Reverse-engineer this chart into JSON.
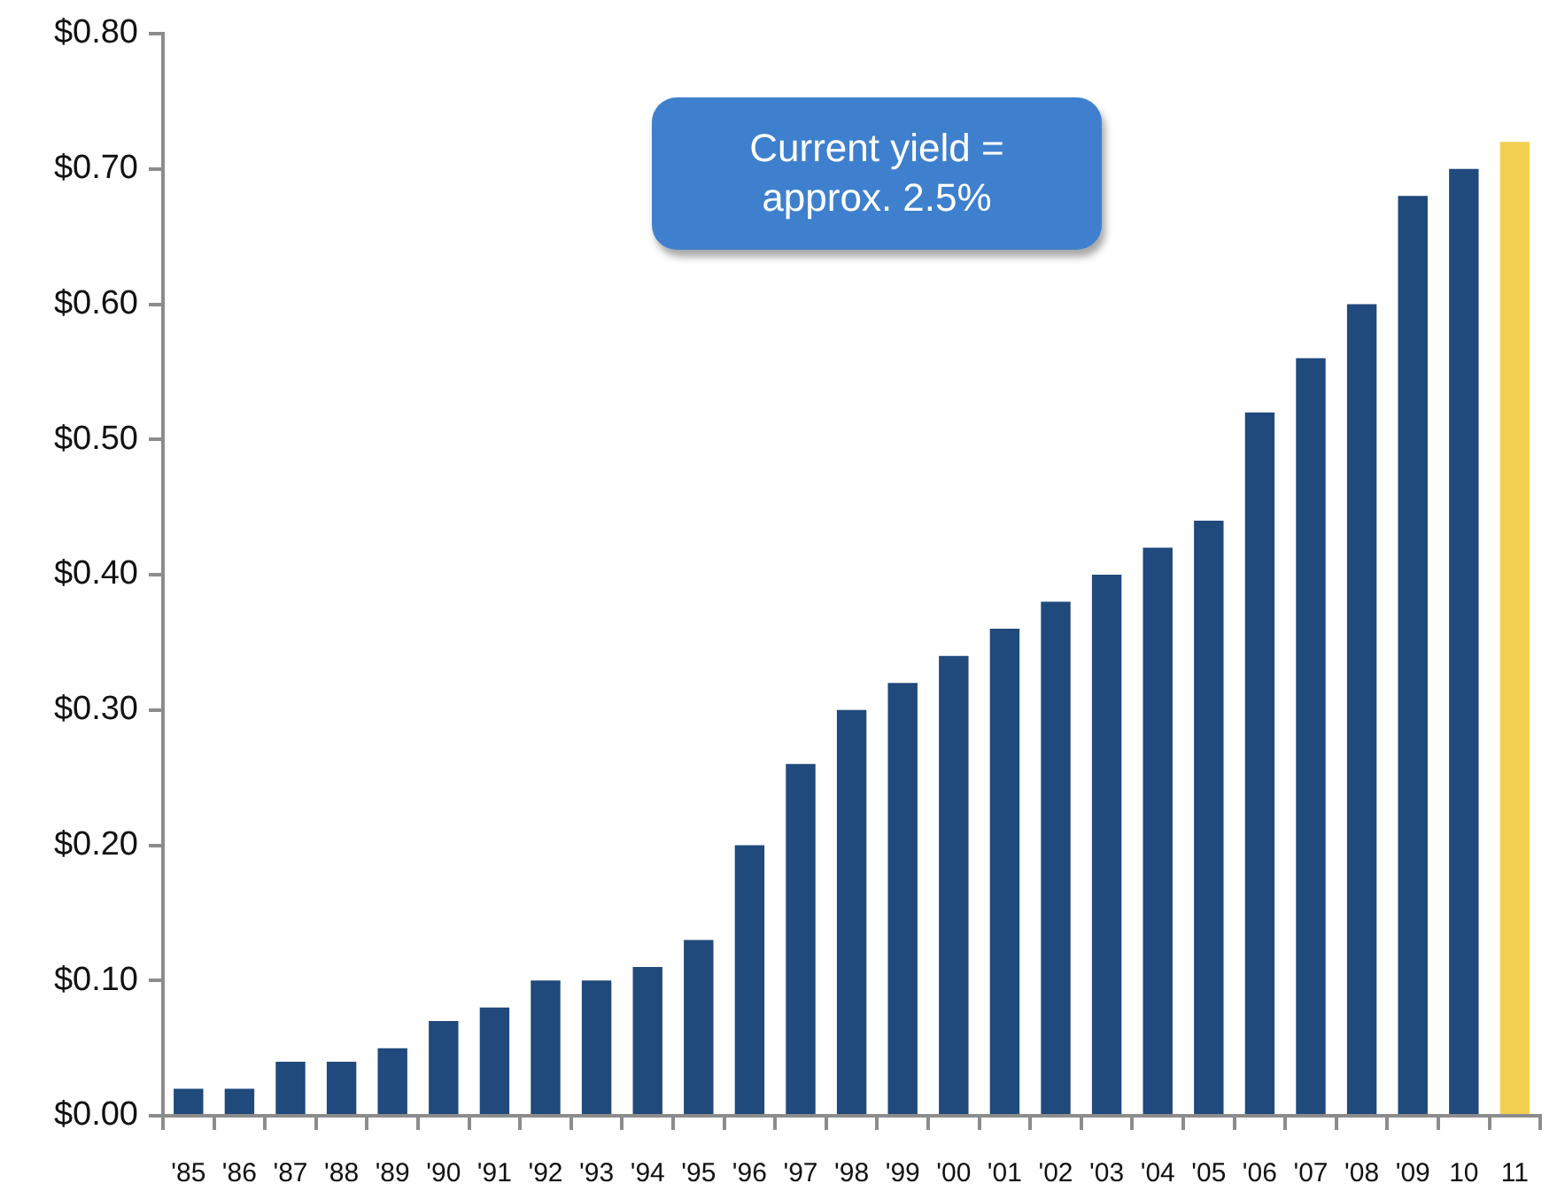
{
  "chart_data": {
    "type": "bar",
    "categories": [
      "'85",
      "'86",
      "'87",
      "'88",
      "'89",
      "'90",
      "'91",
      "'92",
      "'93",
      "'94",
      "'95",
      "'96",
      "'97",
      "'98",
      "'99",
      "'00",
      "'01",
      "'02",
      "'03",
      "'04",
      "'05",
      "'06",
      "'07",
      "'08",
      "'09",
      "10",
      "11"
    ],
    "values": [
      0.02,
      0.02,
      0.04,
      0.04,
      0.05,
      0.07,
      0.08,
      0.1,
      0.1,
      0.11,
      0.13,
      0.2,
      0.26,
      0.3,
      0.32,
      0.34,
      0.36,
      0.38,
      0.4,
      0.42,
      0.44,
      0.52,
      0.56,
      0.6,
      0.68,
      0.7,
      0.72
    ],
    "colors": [
      "#20497c",
      "#20497c",
      "#20497c",
      "#20497c",
      "#20497c",
      "#20497c",
      "#20497c",
      "#20497c",
      "#20497c",
      "#20497c",
      "#20497c",
      "#20497c",
      "#20497c",
      "#20497c",
      "#20497c",
      "#20497c",
      "#20497c",
      "#20497c",
      "#20497c",
      "#20497c",
      "#20497c",
      "#20497c",
      "#20497c",
      "#20497c",
      "#20497c",
      "#20497c",
      "#f2cf50"
    ],
    "ylim": [
      0,
      0.8
    ],
    "yticks": [
      {
        "value": 0,
        "label": "$0.00"
      },
      {
        "value": 0.1,
        "label": "$0.10"
      },
      {
        "value": 0.2,
        "label": "$0.20"
      },
      {
        "value": 0.3,
        "label": "$0.30"
      },
      {
        "value": 0.4,
        "label": "$0.40"
      },
      {
        "value": 0.5,
        "label": "$0.50"
      },
      {
        "value": 0.6,
        "label": "$0.60"
      },
      {
        "value": 0.7,
        "label": "$0.70"
      },
      {
        "value": 0.8,
        "label": "$0.80"
      }
    ],
    "annotations": [
      "Current yield = approx. 2.5%"
    ]
  }
}
